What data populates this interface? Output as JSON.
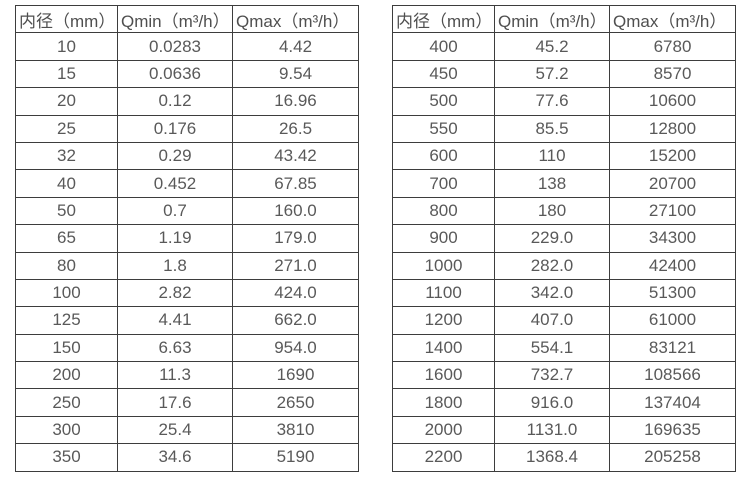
{
  "page": {
    "background_color": "#ffffff",
    "text_color": "#595959",
    "border_color": "#3d3d3d"
  },
  "tables": [
    {
      "name": "flow-table-small-diameters",
      "headers": [
        "内径（mm）",
        "Qmin（m³/h）",
        "Qmax（m³/h）"
      ],
      "rows": [
        [
          "10",
          "0.0283",
          "4.42"
        ],
        [
          "15",
          "0.0636",
          "9.54"
        ],
        [
          "20",
          "0.12",
          "16.96"
        ],
        [
          "25",
          "0.176",
          "26.5"
        ],
        [
          "32",
          "0.29",
          "43.42"
        ],
        [
          "40",
          "0.452",
          "67.85"
        ],
        [
          "50",
          "0.7",
          "160.0"
        ],
        [
          "65",
          "1.19",
          "179.0"
        ],
        [
          "80",
          "1.8",
          "271.0"
        ],
        [
          "100",
          "2.82",
          "424.0"
        ],
        [
          "125",
          "4.41",
          "662.0"
        ],
        [
          "150",
          "6.63",
          "954.0"
        ],
        [
          "200",
          "11.3",
          "1690"
        ],
        [
          "250",
          "17.6",
          "2650"
        ],
        [
          "300",
          "25.4",
          "3810"
        ],
        [
          "350",
          "34.6",
          "5190"
        ]
      ]
    },
    {
      "name": "flow-table-large-diameters",
      "headers": [
        "内径（mm）",
        "Qmin（m³/h）",
        "Qmax（m³/h）"
      ],
      "rows": [
        [
          "400",
          "45.2",
          "6780"
        ],
        [
          "450",
          "57.2",
          "8570"
        ],
        [
          "500",
          "77.6",
          "10600"
        ],
        [
          "550",
          "85.5",
          "12800"
        ],
        [
          "600",
          "110",
          "15200"
        ],
        [
          "700",
          "138",
          "20700"
        ],
        [
          "800",
          "180",
          "27100"
        ],
        [
          "900",
          "229.0",
          "34300"
        ],
        [
          "1000",
          "282.0",
          "42400"
        ],
        [
          "1100",
          "342.0",
          "51300"
        ],
        [
          "1200",
          "407.0",
          "61000"
        ],
        [
          "1400",
          "554.1",
          "83121"
        ],
        [
          "1600",
          "732.7",
          "108566"
        ],
        [
          "1800",
          "916.0",
          "137404"
        ],
        [
          "2000",
          "1131.0",
          "169635"
        ],
        [
          "2200",
          "1368.4",
          "205258"
        ]
      ]
    }
  ]
}
